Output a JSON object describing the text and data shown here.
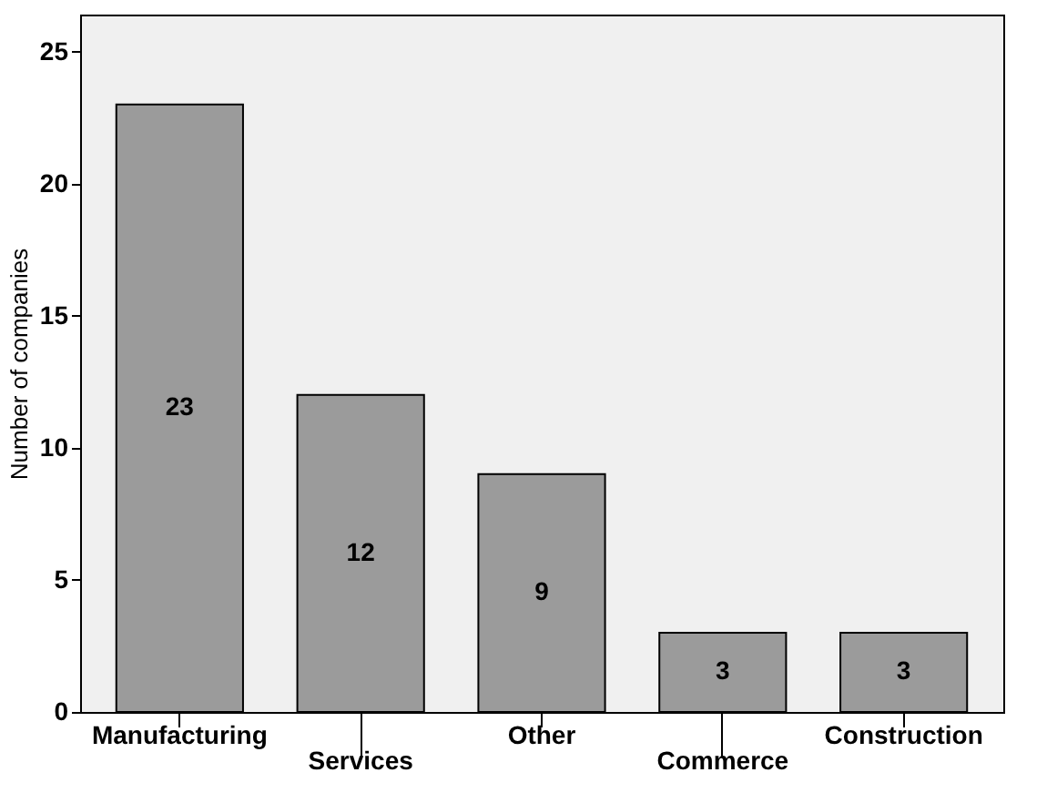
{
  "chart_data": {
    "type": "bar",
    "ylabel": "Number of companies",
    "categories": [
      "Manufacturing",
      "Services",
      "Other",
      "Commerce",
      "Construction"
    ],
    "values": [
      23,
      12,
      9,
      3,
      3
    ],
    "color": "#9b9b9b",
    "ylim": [
      0,
      26.4
    ],
    "yticks": [
      0,
      5,
      10,
      15,
      20,
      25
    ],
    "grid": false,
    "data_labels": true
  }
}
